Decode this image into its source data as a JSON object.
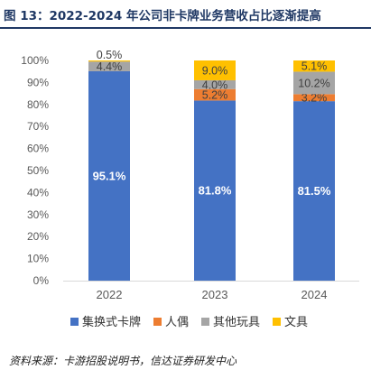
{
  "header": {
    "title": "图 13：2022-2024 年公司非卡牌业务营收占比逐渐提高"
  },
  "footer": {
    "source": "资料来源：卡游招股说明书，信达证券研发中心"
  },
  "chart_data": {
    "type": "bar",
    "stacked": true,
    "categories": [
      "2022",
      "2023",
      "2024"
    ],
    "series": [
      {
        "name": "集换式卡牌",
        "values": [
          95.1,
          81.8,
          81.5
        ],
        "labels": [
          "95.1%",
          "81.8%",
          "81.5%"
        ],
        "color": "#4472c4"
      },
      {
        "name": "人偶",
        "values": [
          0.0,
          5.2,
          3.2
        ],
        "labels": [
          "",
          "5.2%",
          "3.2%"
        ],
        "color": "#ed7d31"
      },
      {
        "name": "其他玩具",
        "values": [
          4.4,
          4.0,
          10.2
        ],
        "labels": [
          "4.4%",
          "4.0%",
          "10.2%"
        ],
        "color": "#a5a5a5"
      },
      {
        "name": "文具",
        "values": [
          0.5,
          9.0,
          5.1
        ],
        "labels": [
          "0.5%",
          "9.0%",
          "5.1%"
        ],
        "color": "#ffc000"
      }
    ],
    "yticks": [
      "0%",
      "10%",
      "20%",
      "30%",
      "40%",
      "50%",
      "60%",
      "70%",
      "80%",
      "90%",
      "100%"
    ],
    "ylim": [
      0,
      100
    ],
    "legend_position": "bottom",
    "grid": false
  }
}
